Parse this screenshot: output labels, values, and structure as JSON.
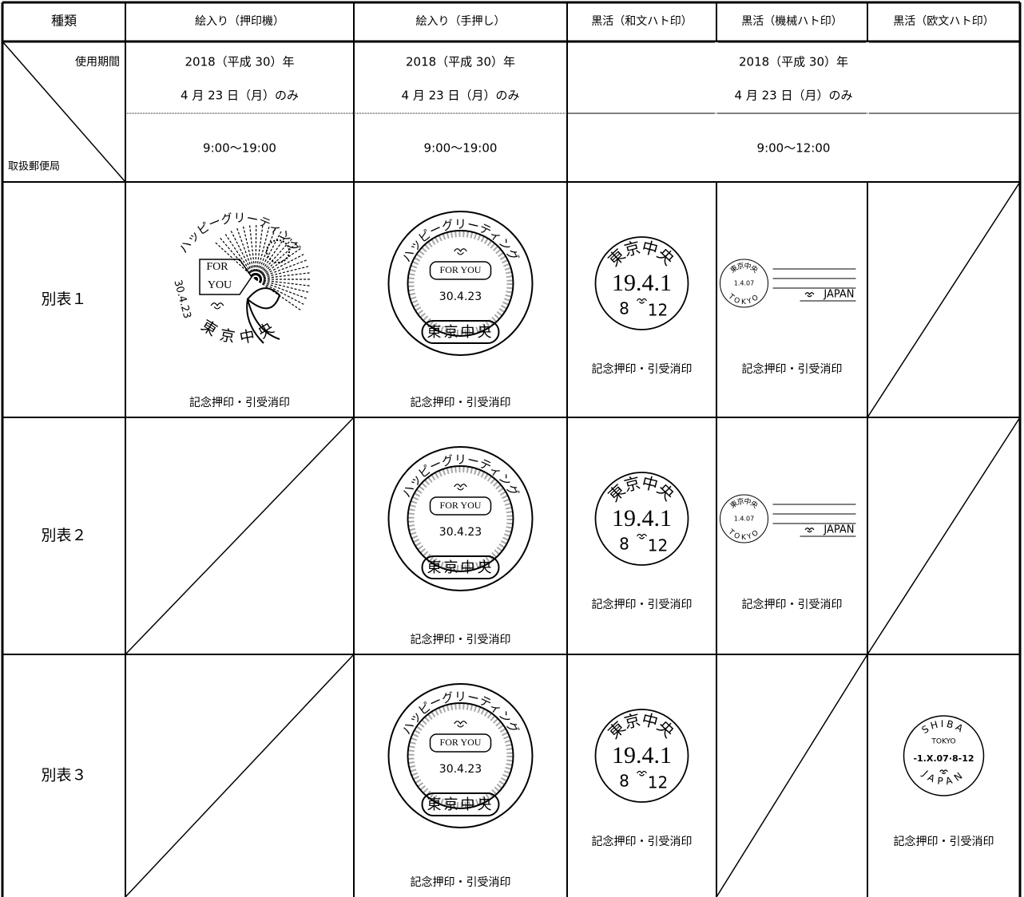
{
  "header": [
    "種類",
    "絵入り（押印機）",
    "絵入り（手押し）",
    "黒活（和文ハト印）",
    "黒活（機械ハト印）",
    "黒活（欧文ハト印）"
  ],
  "corner": {
    "top": "使用期間",
    "bottom": "取扱郵便局"
  },
  "period": {
    "dates": [
      [
        "2018（平成 30）年",
        "4 月 23 日（月）のみ"
      ],
      [
        "2018（平成 30）年",
        "4 月 23 日（月）のみ"
      ],
      [
        "2018（平成 30）年",
        "4 月 23 日（月）のみ"
      ]
    ],
    "times": [
      "9:00～19:00",
      "9:00～19:00",
      "9:00～12:00"
    ]
  },
  "rows": [
    {
      "label": "別表１",
      "cells": [
        {
          "stamp": {
            "arc": "ハッピーグリーティング",
            "tag": [
              "FOR",
              "YOU"
            ],
            "date": "30.4.23",
            "office": "東京中央"
          },
          "caption": "記念押印・引受消印"
        },
        {
          "stamp": {
            "arc": "ハッピーグリーティング",
            "tag": "FOR YOU",
            "date": "30.4.23",
            "office": "東京中央"
          },
          "caption": "記念押印・引受消印"
        },
        {
          "stamp": {
            "office": "東京中央",
            "date": "19.4.1",
            "hour": "8",
            "minute": "12"
          },
          "caption": "記念押印・引受消印"
        },
        {
          "stamp": {
            "office": "東京中央",
            "date": "1.4.07",
            "city": "TOKYO",
            "country": "JAPAN"
          },
          "caption": "記念押印・引受消印"
        },
        null
      ]
    },
    {
      "label": "別表２",
      "cells": [
        null,
        {
          "stamp": {
            "arc": "ハッピーグリーティング",
            "tag": "FOR YOU",
            "date": "30.4.23",
            "office": "東京中央"
          },
          "caption": "記念押印・引受消印"
        },
        {
          "stamp": {
            "office": "東京中央",
            "date": "19.4.1",
            "hour": "8",
            "minute": "12"
          },
          "caption": "記念押印・引受消印"
        },
        {
          "stamp": {
            "office": "東京中央",
            "date": "1.4.07",
            "city": "TOKYO",
            "country": "JAPAN"
          },
          "caption": "記念押印・引受消印"
        },
        null
      ]
    },
    {
      "label": "別表３",
      "cells": [
        null,
        {
          "stamp": {
            "arc": "ハッピーグリーティング",
            "tag": "FOR YOU",
            "date": "30.4.23",
            "office": "東京中央"
          },
          "caption": "記念押印・引受消印"
        },
        {
          "stamp": {
            "office": "東京中央",
            "date": "19.4.1",
            "hour": "8",
            "minute": "12"
          },
          "caption": "記念押印・引受消印"
        },
        null,
        {
          "stamp": {
            "office": "SHIBA",
            "city": "TOKYO",
            "date": "-1.X.07·8-12",
            "country": "JAPAN"
          },
          "caption": "記念押印・引受消印"
        }
      ]
    }
  ]
}
